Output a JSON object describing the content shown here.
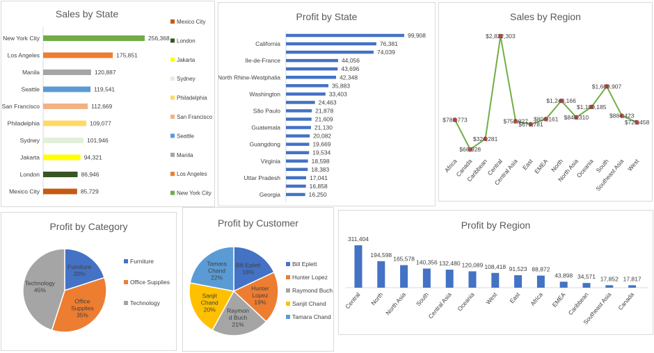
{
  "colors": {
    "bar_blue": "#4472c4",
    "line_green": "#70ad47",
    "marker": "#c0504d",
    "pie_blue": "#4472c4",
    "pie_orange": "#ed7d31",
    "pie_gray": "#a5a5a5",
    "pie_yellow": "#ffc000",
    "pie_lightblue": "#5b9bd5"
  },
  "chart_data": [
    {
      "id": "sales_by_state",
      "type": "bar",
      "orientation": "horizontal",
      "title": "Sales by State",
      "categories": [
        "New York City",
        "Los Angeles",
        "Manila",
        "Seattle",
        "San Francisco",
        "Philadelphia",
        "Sydney",
        "Jakarta",
        "London",
        "Mexico City"
      ],
      "values": [
        256368,
        175851,
        120887,
        119541,
        112669,
        109077,
        101946,
        94321,
        86946,
        85729
      ],
      "labels": [
        "256,368",
        "175,851",
        "120,887",
        "119,541",
        "112,669",
        "109,077",
        "101,946",
        "94,321",
        "86,946",
        "85,729"
      ],
      "colors": [
        "#70ad47",
        "#ed7d31",
        "#a5a5a5",
        "#5b9bd5",
        "#f4b183",
        "#ffd966",
        "#e2efda",
        "#ffff00",
        "#375623",
        "#c55a11"
      ],
      "legend": [
        "Mexico City",
        "London",
        "Jakarta",
        "Sydney",
        "Philadelphia",
        "San Francisco",
        "Seattle",
        "Manila",
        "Los Angeles",
        "New York City"
      ],
      "legend_colors": [
        "#c55a11",
        "#375623",
        "#ffff00",
        "#e2efda",
        "#ffd966",
        "#f4b183",
        "#5b9bd5",
        "#a5a5a5",
        "#ed7d31",
        "#70ad47"
      ],
      "legend_position": "right"
    },
    {
      "id": "profit_by_state",
      "type": "bar",
      "orientation": "horizontal",
      "title": "Profit by State",
      "categories": [
        "",
        "California",
        "",
        "Ile-de-France",
        "",
        "North Rhine-Westphalia",
        "",
        "Washington",
        "",
        "São Paulo",
        "",
        "Guatemala",
        "",
        "Guangdong",
        "",
        "Virginia",
        "",
        "Uttar Pradesh",
        "",
        "Georgia"
      ],
      "values": [
        99908,
        76381,
        74039,
        44056,
        43696,
        42348,
        35883,
        33403,
        24463,
        21878,
        21609,
        21130,
        20082,
        19669,
        19534,
        18598,
        18383,
        17041,
        16858,
        16250
      ],
      "labels": [
        "99,908",
        "76,381",
        "74,039",
        "44,056",
        "43,696",
        "42,348",
        "35,883",
        "33,403",
        "24,463",
        "21,878",
        "21,609",
        "21,130",
        "20,082",
        "19,669",
        "19,534",
        "18,598",
        "18,383",
        "17,041",
        "16,858",
        "16,250"
      ]
    },
    {
      "id": "sales_by_region",
      "type": "line",
      "title": "Sales by Region",
      "categories": [
        "Africa",
        "Canada",
        "Caribbean",
        "Central",
        "Central Asia",
        "East",
        "EMEA",
        "North",
        "North Asia",
        "Oceania",
        "South",
        "Southeast Asia",
        "West"
      ],
      "values": [
        783773,
        66928,
        324281,
        2822303,
        752827,
        678781,
        806161,
        1248166,
        848310,
        1100185,
        1600907,
        884423,
        725458
      ],
      "labels": [
        "$783,773",
        "$66,928",
        "$324,281",
        "$2,822,303",
        "$752,827",
        "$678,781",
        "$806,161",
        "$1,248,166",
        "$848,310",
        "$1,100,185",
        "$1,600,907",
        "$884,423",
        "$725,458"
      ]
    },
    {
      "id": "profit_by_category",
      "type": "pie",
      "title": "Profit by Category",
      "categories": [
        "Furniture",
        "Office Supplies",
        "Technology"
      ],
      "values": [
        20,
        35,
        45
      ],
      "labels": [
        "20%",
        "35%",
        "45%"
      ],
      "colors": [
        "#4472c4",
        "#ed7d31",
        "#a5a5a5"
      ],
      "legend_position": "right"
    },
    {
      "id": "profit_by_customer",
      "type": "pie",
      "title": "Profit by Customer",
      "categories": [
        "Bill Eplett",
        "Hunter Lopez",
        "Raymond Buch",
        "Sanjit Chand",
        "Tamara Chand"
      ],
      "slice_labels": [
        [
          "Bill Eplett",
          "18%"
        ],
        [
          "Hunter",
          "Lopez",
          "19%"
        ],
        [
          "Raymon",
          "d Buch",
          "21%"
        ],
        [
          "Sanjit",
          "Chand",
          "20%"
        ],
        [
          "Tamara",
          "Chand",
          "22%"
        ]
      ],
      "values": [
        18,
        19,
        21,
        20,
        22
      ],
      "colors": [
        "#4472c4",
        "#ed7d31",
        "#a5a5a5",
        "#ffc000",
        "#5b9bd5"
      ],
      "legend_position": "right"
    },
    {
      "id": "profit_by_region",
      "type": "bar",
      "orientation": "vertical",
      "title": "Profit by Region",
      "categories": [
        "Central",
        "North",
        "North Asia",
        "South",
        "Central Asia",
        "Oceania",
        "West",
        "East",
        "Africa",
        "EMEA",
        "Caribbean",
        "Southeast Asia",
        "Canada"
      ],
      "values": [
        311404,
        194598,
        165578,
        140356,
        132480,
        120089,
        108418,
        91523,
        88872,
        43898,
        34571,
        17852,
        17817
      ],
      "labels": [
        "311,404",
        "194,598",
        "165,578",
        "140,356",
        "132,480",
        "120,089",
        "108,418",
        "91,523",
        "88,872",
        "43,898",
        "34,571",
        "17,852",
        "17,817"
      ]
    }
  ]
}
